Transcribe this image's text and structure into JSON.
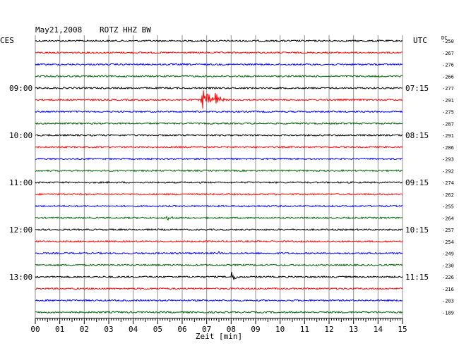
{
  "header": {
    "date": "May21,2008",
    "station": "ROTZ HHZ BW",
    "left_tz": "CES",
    "right_tz": "UTC",
    "dc_label": "DC"
  },
  "chart_data": {
    "type": "line",
    "title": "May21,2008   ROTZ HHZ BW",
    "xlabel": "Zeit [min]",
    "x_range": [
      0,
      15
    ],
    "x_ticks": [
      "00",
      "01",
      "02",
      "03",
      "04",
      "05",
      "06",
      "07",
      "08",
      "09",
      "10",
      "11",
      "12",
      "13",
      "14",
      "15"
    ],
    "trace_count": 24,
    "trace_colors": [
      "#000000",
      "#ff0000",
      "#0000ff",
      "#006400"
    ],
    "left_hour_labels": [
      {
        "trace": 4,
        "label": "09:00"
      },
      {
        "trace": 8,
        "label": "10:00"
      },
      {
        "trace": 12,
        "label": "11:00"
      },
      {
        "trace": 16,
        "label": "12:00"
      },
      {
        "trace": 20,
        "label": "13:00"
      }
    ],
    "right_hour_labels": [
      {
        "trace": 4,
        "label": "07:15"
      },
      {
        "trace": 8,
        "label": "08:15"
      },
      {
        "trace": 12,
        "label": "09:15"
      },
      {
        "trace": 16,
        "label": "10:15"
      },
      {
        "trace": 20,
        "label": "11:15"
      }
    ],
    "dc_offsets": [
      -250,
      -267,
      -276,
      -266,
      -277,
      -291,
      -275,
      -287,
      -291,
      -286,
      -293,
      -292,
      -274,
      -262,
      -255,
      -264,
      -257,
      -254,
      -249,
      -230,
      -226,
      -216,
      -203,
      -189
    ],
    "events": [
      {
        "trace": 5,
        "minute": 6.8,
        "amplitude": 16,
        "duration": 1.6,
        "label": "earthquake"
      },
      {
        "trace": 5,
        "minute": 7.3,
        "amplitude": 16,
        "duration": 0.8,
        "label": "earthquake"
      },
      {
        "trace": 8,
        "minute": 1.8,
        "amplitude": 5,
        "duration": 0.25,
        "label": "spike"
      },
      {
        "trace": 15,
        "minute": 5.4,
        "amplitude": 9,
        "duration": 0.5,
        "label": "event"
      },
      {
        "trace": 18,
        "minute": 7.5,
        "amplitude": 3,
        "duration": 0.6,
        "label": "event"
      },
      {
        "trace": 20,
        "minute": 8.0,
        "amplitude": 8,
        "duration": 0.9,
        "label": "event"
      }
    ]
  }
}
